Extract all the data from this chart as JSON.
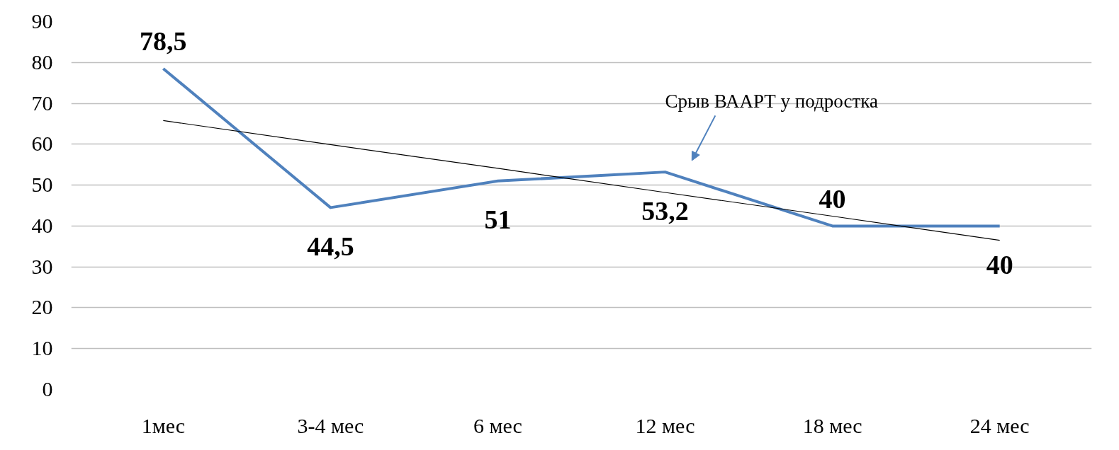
{
  "chart_data": {
    "type": "line",
    "categories": [
      "1мес",
      "3-4 мес",
      "6 мес",
      "12 мес",
      "18 мес",
      "24 мес"
    ],
    "series": [
      {
        "color": "#4f81bd",
        "values": [
          78.5,
          44.5,
          51,
          53.2,
          40,
          40
        ],
        "value_labels": [
          "78,5",
          "44,5",
          "51",
          "53,2",
          "40",
          "40"
        ]
      },
      {
        "type": "line",
        "color": "#000000",
        "values": [
          65.8,
          59.9,
          54.1,
          48.2,
          42.4,
          36.5
        ]
      }
    ],
    "ylim": [
      0,
      90
    ],
    "yticks": [
      0,
      10,
      20,
      30,
      40,
      50,
      60,
      70,
      80,
      90
    ],
    "grid": "y",
    "marker": "none",
    "line_style": "solid",
    "annotations": [
      "Срыв ВААРТ у подростка"
    ]
  }
}
